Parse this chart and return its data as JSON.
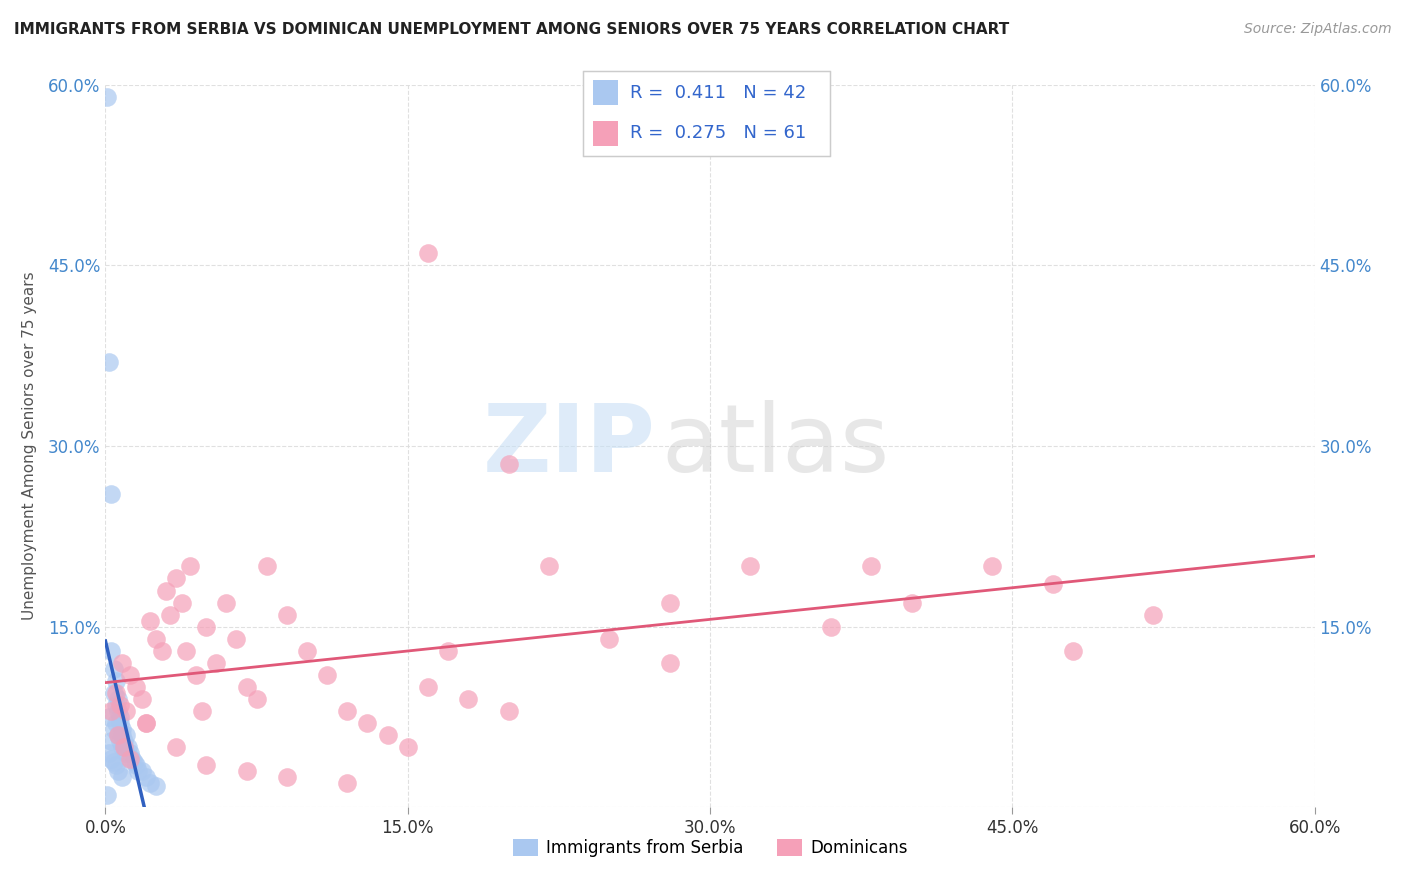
{
  "title": "IMMIGRANTS FROM SERBIA VS DOMINICAN UNEMPLOYMENT AMONG SENIORS OVER 75 YEARS CORRELATION CHART",
  "source": "Source: ZipAtlas.com",
  "ylabel": "Unemployment Among Seniors over 75 years",
  "xlim": [
    0.0,
    0.6
  ],
  "ylim": [
    0.0,
    0.6
  ],
  "xticks": [
    0.0,
    0.15,
    0.3,
    0.45,
    0.6
  ],
  "yticks": [
    0.0,
    0.15,
    0.3,
    0.45,
    0.6
  ],
  "xticklabels": [
    "0.0%",
    "15.0%",
    "30.0%",
    "45.0%",
    "60.0%"
  ],
  "yticklabels_left": [
    "",
    "15.0%",
    "30.0%",
    "45.0%",
    "60.0%"
  ],
  "yticklabels_right": [
    "",
    "15.0%",
    "30.0%",
    "45.0%",
    "60.0%"
  ],
  "serbia_R": 0.411,
  "serbia_N": 42,
  "dominican_R": 0.275,
  "dominican_N": 61,
  "serbia_color": "#aac8f0",
  "dominican_color": "#f5a0b8",
  "serbia_line_color": "#3060c0",
  "dominican_line_color": "#e05878",
  "watermark_zip": "ZIP",
  "watermark_atlas": "atlas",
  "background_color": "#ffffff",
  "grid_color": "#dddddd",
  "serbia_x": [
    0.001,
    0.002,
    0.003,
    0.003,
    0.004,
    0.004,
    0.005,
    0.005,
    0.006,
    0.006,
    0.007,
    0.007,
    0.008,
    0.008,
    0.009,
    0.009,
    0.01,
    0.01,
    0.011,
    0.012,
    0.013,
    0.014,
    0.015,
    0.016,
    0.018,
    0.02,
    0.022,
    0.025,
    0.004,
    0.005,
    0.003,
    0.006,
    0.007,
    0.008,
    0.002,
    0.003,
    0.004,
    0.005,
    0.006,
    0.008,
    0.002,
    0.001
  ],
  "serbia_y": [
    0.59,
    0.37,
    0.26,
    0.13,
    0.115,
    0.095,
    0.105,
    0.085,
    0.09,
    0.08,
    0.075,
    0.07,
    0.065,
    0.06,
    0.055,
    0.05,
    0.06,
    0.045,
    0.05,
    0.045,
    0.04,
    0.038,
    0.035,
    0.03,
    0.03,
    0.025,
    0.02,
    0.018,
    0.065,
    0.07,
    0.055,
    0.06,
    0.055,
    0.05,
    0.045,
    0.04,
    0.038,
    0.035,
    0.03,
    0.025,
    0.075,
    0.01
  ],
  "dominican_x": [
    0.005,
    0.007,
    0.008,
    0.01,
    0.012,
    0.015,
    0.018,
    0.02,
    0.022,
    0.025,
    0.028,
    0.03,
    0.032,
    0.035,
    0.038,
    0.04,
    0.042,
    0.045,
    0.048,
    0.05,
    0.055,
    0.06,
    0.065,
    0.07,
    0.075,
    0.08,
    0.09,
    0.1,
    0.11,
    0.12,
    0.13,
    0.14,
    0.15,
    0.16,
    0.17,
    0.18,
    0.2,
    0.22,
    0.25,
    0.28,
    0.32,
    0.36,
    0.4,
    0.44,
    0.48,
    0.52,
    0.003,
    0.006,
    0.009,
    0.012,
    0.02,
    0.035,
    0.05,
    0.07,
    0.09,
    0.12,
    0.16,
    0.2,
    0.28,
    0.38,
    0.47
  ],
  "dominican_y": [
    0.095,
    0.085,
    0.12,
    0.08,
    0.11,
    0.1,
    0.09,
    0.07,
    0.155,
    0.14,
    0.13,
    0.18,
    0.16,
    0.19,
    0.17,
    0.13,
    0.2,
    0.11,
    0.08,
    0.15,
    0.12,
    0.17,
    0.14,
    0.1,
    0.09,
    0.2,
    0.16,
    0.13,
    0.11,
    0.08,
    0.07,
    0.06,
    0.05,
    0.1,
    0.13,
    0.09,
    0.08,
    0.2,
    0.14,
    0.12,
    0.2,
    0.15,
    0.17,
    0.2,
    0.13,
    0.16,
    0.08,
    0.06,
    0.05,
    0.04,
    0.07,
    0.05,
    0.035,
    0.03,
    0.025,
    0.02,
    0.46,
    0.285,
    0.17,
    0.2,
    0.185
  ]
}
